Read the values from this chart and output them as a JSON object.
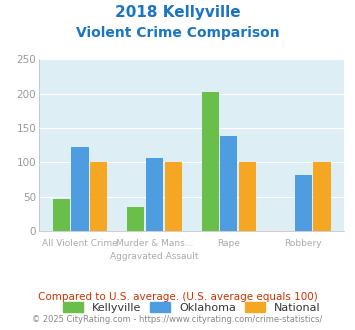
{
  "title_line1": "2018 Kellyville",
  "title_line2": "Violent Crime Comparison",
  "cat_labels_top": [
    "",
    "Murder & Mans...",
    "",
    ""
  ],
  "cat_labels_bottom": [
    "All Violent Crime",
    "Aggravated Assault",
    "Rape",
    "Robbery"
  ],
  "kellyville": [
    46,
    35,
    203,
    0
  ],
  "oklahoma": [
    122,
    106,
    138,
    82
  ],
  "national": [
    100,
    101,
    101,
    101
  ],
  "kellyville_color": "#6abf4b",
  "oklahoma_color": "#4d9de0",
  "national_color": "#f5a623",
  "ylim": [
    0,
    250
  ],
  "yticks": [
    0,
    50,
    100,
    150,
    200,
    250
  ],
  "bg_color": "#ddeef4",
  "title_color": "#1a75c2",
  "footer_text": "Compared to U.S. average. (U.S. average equals 100)",
  "footer_color": "#cc3300",
  "credit_text": "© 2025 CityRating.com - https://www.cityrating.com/crime-statistics/",
  "credit_color": "#888888",
  "legend_labels": [
    "Kellyville",
    "Oklahoma",
    "National"
  ],
  "label_color": "#aaaaaa"
}
